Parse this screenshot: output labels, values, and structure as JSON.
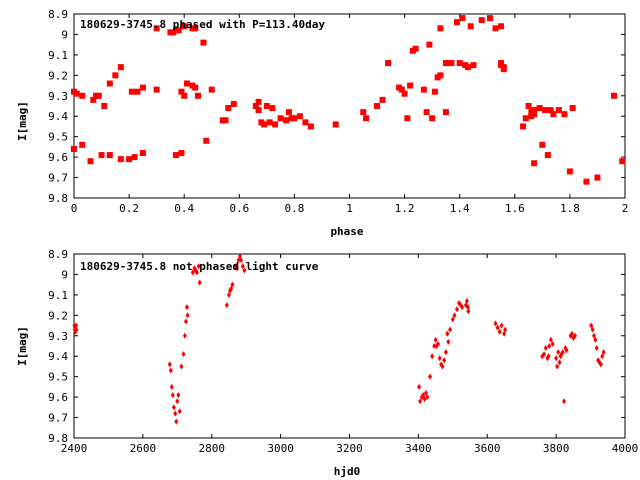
{
  "chart_data": [
    {
      "type": "scatter",
      "title": "180629-3745.8 phased with P=113.40day",
      "xlabel": "phase",
      "ylabel": "I[mag]",
      "xlim": [
        0,
        2
      ],
      "ylim": [
        8.9,
        9.8
      ],
      "y_inverted": true,
      "marker": "filled-square",
      "color": "#ff0000",
      "xticks": [
        "0",
        "0.2",
        "0.4",
        "0.6",
        "0.8",
        "1",
        "1.2",
        "1.4",
        "1.6",
        "1.8",
        "2"
      ],
      "xtick_values": [
        0,
        0.2,
        0.4,
        0.6,
        0.8,
        1,
        1.2,
        1.4,
        1.6,
        1.8,
        2
      ],
      "yticks": [
        "8.9",
        "9",
        "9.1",
        "9.2",
        "9.3",
        "9.4",
        "9.5",
        "9.6",
        "9.7",
        "9.8"
      ],
      "ytick_values": [
        8.9,
        9.0,
        9.1,
        9.2,
        9.3,
        9.4,
        9.5,
        9.6,
        9.7,
        9.8
      ],
      "points": [
        [
          0.0,
          9.28
        ],
        [
          0.01,
          9.29
        ],
        [
          0.03,
          9.3
        ],
        [
          0.07,
          9.32
        ],
        [
          0.08,
          9.3
        ],
        [
          0.09,
          9.3
        ],
        [
          0.11,
          9.35
        ],
        [
          0.13,
          9.24
        ],
        [
          0.15,
          9.2
        ],
        [
          0.17,
          9.16
        ],
        [
          0.21,
          9.28
        ],
        [
          0.23,
          9.28
        ],
        [
          0.25,
          9.26
        ],
        [
          0.3,
          9.27
        ],
        [
          0.0,
          9.56
        ],
        [
          0.03,
          9.54
        ],
        [
          0.06,
          9.62
        ],
        [
          0.1,
          9.59
        ],
        [
          0.13,
          9.59
        ],
        [
          0.17,
          9.61
        ],
        [
          0.2,
          9.61
        ],
        [
          0.22,
          9.6
        ],
        [
          0.25,
          9.58
        ],
        [
          0.3,
          8.97
        ],
        [
          0.35,
          8.99
        ],
        [
          0.36,
          8.99
        ],
        [
          0.37,
          8.98
        ],
        [
          0.38,
          8.98
        ],
        [
          0.4,
          8.96
        ],
        [
          0.43,
          8.97
        ],
        [
          0.44,
          8.97
        ],
        [
          0.47,
          9.04
        ],
        [
          0.37,
          9.59
        ],
        [
          0.39,
          9.58
        ],
        [
          0.48,
          9.52
        ],
        [
          0.39,
          9.28
        ],
        [
          0.4,
          9.3
        ],
        [
          0.41,
          9.24
        ],
        [
          0.43,
          9.25
        ],
        [
          0.44,
          9.26
        ],
        [
          0.45,
          9.3
        ],
        [
          0.5,
          9.27
        ],
        [
          0.54,
          9.42
        ],
        [
          0.55,
          9.42
        ],
        [
          0.56,
          9.36
        ],
        [
          0.58,
          9.34
        ],
        [
          0.66,
          9.35
        ],
        [
          0.67,
          9.33
        ],
        [
          0.67,
          9.37
        ],
        [
          0.68,
          9.43
        ],
        [
          0.69,
          9.44
        ],
        [
          0.7,
          9.35
        ],
        [
          0.71,
          9.43
        ],
        [
          0.72,
          9.36
        ],
        [
          0.73,
          9.44
        ],
        [
          0.75,
          9.41
        ],
        [
          0.77,
          9.42
        ],
        [
          0.78,
          9.38
        ],
        [
          0.79,
          9.41
        ],
        [
          0.8,
          9.41
        ],
        [
          0.82,
          9.4
        ],
        [
          0.84,
          9.43
        ],
        [
          0.86,
          9.45
        ],
        [
          0.95,
          9.44
        ],
        [
          1.05,
          9.38
        ],
        [
          1.06,
          9.41
        ],
        [
          1.1,
          9.35
        ],
        [
          1.12,
          9.32
        ],
        [
          1.14,
          9.14
        ],
        [
          1.18,
          9.26
        ],
        [
          1.19,
          9.27
        ],
        [
          1.2,
          9.29
        ],
        [
          1.21,
          9.41
        ],
        [
          1.22,
          9.25
        ],
        [
          1.23,
          9.08
        ],
        [
          1.24,
          9.07
        ],
        [
          1.27,
          9.27
        ],
        [
          1.28,
          9.38
        ],
        [
          1.29,
          9.05
        ],
        [
          1.3,
          9.41
        ],
        [
          1.31,
          9.28
        ],
        [
          1.32,
          9.21
        ],
        [
          1.33,
          9.2
        ],
        [
          1.33,
          8.97
        ],
        [
          1.35,
          9.14
        ],
        [
          1.35,
          9.38
        ],
        [
          1.37,
          9.14
        ],
        [
          1.39,
          8.94
        ],
        [
          1.4,
          9.14
        ],
        [
          1.41,
          8.92
        ],
        [
          1.42,
          9.15
        ],
        [
          1.43,
          9.16
        ],
        [
          1.44,
          8.96
        ],
        [
          1.45,
          9.15
        ],
        [
          1.48,
          8.93
        ],
        [
          1.51,
          8.92
        ],
        [
          1.53,
          8.97
        ],
        [
          1.55,
          8.96
        ],
        [
          1.55,
          9.14
        ],
        [
          1.55,
          9.15
        ],
        [
          1.56,
          9.16
        ],
        [
          1.56,
          9.17
        ],
        [
          1.63,
          9.45
        ],
        [
          1.64,
          9.41
        ],
        [
          1.65,
          9.35
        ],
        [
          1.66,
          9.38
        ],
        [
          1.66,
          9.4
        ],
        [
          1.67,
          9.39
        ],
        [
          1.67,
          9.37
        ],
        [
          1.67,
          9.63
        ],
        [
          1.69,
          9.36
        ],
        [
          1.7,
          9.54
        ],
        [
          1.71,
          9.37
        ],
        [
          1.72,
          9.59
        ],
        [
          1.73,
          9.37
        ],
        [
          1.74,
          9.39
        ],
        [
          1.76,
          9.37
        ],
        [
          1.78,
          9.39
        ],
        [
          1.81,
          9.36
        ],
        [
          1.8,
          9.67
        ],
        [
          1.86,
          9.72
        ],
        [
          1.9,
          9.7
        ],
        [
          1.96,
          9.3
        ],
        [
          1.99,
          9.62
        ]
      ]
    },
    {
      "type": "scatter",
      "title": "180629-3745.8 not phased light curve",
      "xlabel": "hjd0",
      "ylabel": "I[mag]",
      "xlim": [
        2400,
        4000
      ],
      "ylim": [
        8.9,
        9.8
      ],
      "y_inverted": true,
      "marker": "small-diamond",
      "color": "#ff0000",
      "xticks": [
        "2400",
        "2600",
        "2800",
        "3000",
        "3200",
        "3400",
        "3600",
        "3800",
        "4000"
      ],
      "xtick_values": [
        2400,
        2600,
        2800,
        3000,
        3200,
        3400,
        3600,
        3800,
        4000
      ],
      "yticks": [
        "8.9",
        "9",
        "9.1",
        "9.2",
        "9.3",
        "9.4",
        "9.5",
        "9.6",
        "9.7",
        "9.8"
      ],
      "ytick_values": [
        8.9,
        9.0,
        9.1,
        9.2,
        9.3,
        9.4,
        9.5,
        9.6,
        9.7,
        9.8
      ],
      "points": [
        [
          2401,
          9.25
        ],
        [
          2402,
          9.27
        ],
        [
          2403,
          9.26
        ],
        [
          2404,
          9.28
        ],
        [
          2406,
          9.25
        ],
        [
          2407,
          9.27
        ],
        [
          2678,
          9.44
        ],
        [
          2681,
          9.47
        ],
        [
          2684,
          9.55
        ],
        [
          2687,
          9.59
        ],
        [
          2690,
          9.65
        ],
        [
          2694,
          9.68
        ],
        [
          2697,
          9.72
        ],
        [
          2700,
          9.62
        ],
        [
          2703,
          9.59
        ],
        [
          2707,
          9.67
        ],
        [
          2712,
          9.45
        ],
        [
          2718,
          9.39
        ],
        [
          2722,
          9.3
        ],
        [
          2725,
          9.23
        ],
        [
          2728,
          9.16
        ],
        [
          2730,
          9.2
        ],
        [
          2745,
          8.99
        ],
        [
          2750,
          8.97
        ],
        [
          2753,
          8.98
        ],
        [
          2757,
          8.99
        ],
        [
          2762,
          8.96
        ],
        [
          2765,
          9.04
        ],
        [
          2844,
          9.15
        ],
        [
          2850,
          9.1
        ],
        [
          2853,
          9.08
        ],
        [
          2856,
          9.07
        ],
        [
          2860,
          9.05
        ],
        [
          2870,
          8.96
        ],
        [
          2873,
          8.97
        ],
        [
          2878,
          8.93
        ],
        [
          2882,
          8.91
        ],
        [
          2885,
          8.93
        ],
        [
          2890,
          8.96
        ],
        [
          2895,
          8.98
        ],
        [
          3402,
          9.55
        ],
        [
          3405,
          9.62
        ],
        [
          3410,
          9.6
        ],
        [
          3414,
          9.59
        ],
        [
          3418,
          9.61
        ],
        [
          3422,
          9.58
        ],
        [
          3426,
          9.6
        ],
        [
          3434,
          9.5
        ],
        [
          3440,
          9.4
        ],
        [
          3446,
          9.35
        ],
        [
          3450,
          9.32
        ],
        [
          3453,
          9.35
        ],
        [
          3457,
          9.34
        ],
        [
          3462,
          9.41
        ],
        [
          3466,
          9.44
        ],
        [
          3470,
          9.45
        ],
        [
          3475,
          9.42
        ],
        [
          3480,
          9.38
        ],
        [
          3484,
          9.29
        ],
        [
          3487,
          9.33
        ],
        [
          3492,
          9.27
        ],
        [
          3500,
          9.22
        ],
        [
          3505,
          9.2
        ],
        [
          3512,
          9.17
        ],
        [
          3518,
          9.14
        ],
        [
          3523,
          9.15
        ],
        [
          3527,
          9.16
        ],
        [
          3538,
          9.15
        ],
        [
          3541,
          9.13
        ],
        [
          3544,
          9.16
        ],
        [
          3545,
          9.18
        ],
        [
          3624,
          9.24
        ],
        [
          3630,
          9.26
        ],
        [
          3636,
          9.28
        ],
        [
          3642,
          9.25
        ],
        [
          3649,
          9.29
        ],
        [
          3652,
          9.27
        ],
        [
          3760,
          9.4
        ],
        [
          3765,
          9.39
        ],
        [
          3770,
          9.36
        ],
        [
          3775,
          9.41
        ],
        [
          3778,
          9.4
        ],
        [
          3780,
          9.35
        ],
        [
          3785,
          9.32
        ],
        [
          3790,
          9.34
        ],
        [
          3800,
          9.41
        ],
        [
          3803,
          9.45
        ],
        [
          3806,
          9.38
        ],
        [
          3810,
          9.43
        ],
        [
          3813,
          9.4
        ],
        [
          3816,
          9.39
        ],
        [
          3819,
          9.38
        ],
        [
          3823,
          9.62
        ],
        [
          3827,
          9.36
        ],
        [
          3830,
          9.37
        ],
        [
          3842,
          9.3
        ],
        [
          3846,
          9.29
        ],
        [
          3850,
          9.31
        ],
        [
          3855,
          9.3
        ],
        [
          3902,
          9.25
        ],
        [
          3906,
          9.27
        ],
        [
          3910,
          9.3
        ],
        [
          3914,
          9.32
        ],
        [
          3918,
          9.36
        ],
        [
          3922,
          9.42
        ],
        [
          3926,
          9.43
        ],
        [
          3930,
          9.44
        ],
        [
          3934,
          9.4
        ],
        [
          3938,
          9.38
        ]
      ]
    }
  ]
}
